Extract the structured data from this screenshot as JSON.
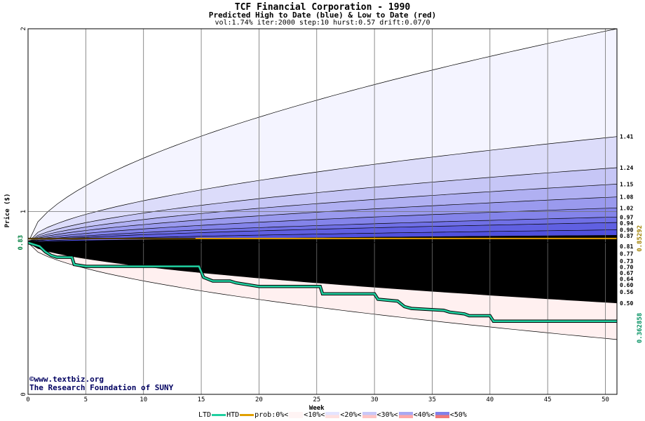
{
  "chart_data": {
    "type": "area",
    "title": "TCF Financial Corporation - 1990",
    "subtitle": "Predicted High to Date (blue) &  Low to Date (red)",
    "params": "vol:1.74% iter:2000 step:10 hurst:0.57 drift:0.07/0",
    "xlabel": "Week",
    "ylabel": "Price ($)",
    "xlim": [
      0,
      51
    ],
    "ylim": [
      0,
      2
    ],
    "x_ticks": [
      0,
      5,
      10,
      15,
      20,
      25,
      30,
      35,
      40,
      45,
      50
    ],
    "y_ticks": [
      0,
      1,
      2
    ],
    "start_price": 0.83,
    "start_price_label": "0.83",
    "high_band_ends": [
      1.41,
      1.24,
      1.15,
      1.08,
      1.02,
      0.97,
      0.94,
      0.9,
      0.87
    ],
    "low_band_ends": [
      0.81,
      0.77,
      0.73,
      0.7,
      0.67,
      0.64,
      0.6,
      0.56,
      0.5
    ],
    "band_end_labels": [
      "1.41",
      "1.24",
      "1.15",
      "1.08",
      "1.02",
      "0.97",
      "0.94",
      "0.90",
      "0.87",
      "0.81",
      "0.77",
      "0.73",
      "0.70",
      "0.67",
      "0.64",
      "0.60",
      "0.56",
      "0.50"
    ],
    "htd_value": 0.85292,
    "htd_value_label": "0.85292",
    "ltd_value": 0.362858,
    "ltd_value_label": "0.362858",
    "htd_series": {
      "name": "HTD",
      "x": [
        0,
        14.5
      ],
      "y": [
        0.85,
        0.85
      ]
    },
    "ltd_series": {
      "name": "LTD",
      "x": [
        0,
        1,
        1.5,
        2,
        2.5,
        3.8,
        4,
        5,
        14.8,
        15.2,
        16,
        17.5,
        18,
        20,
        25.3,
        25.5,
        30,
        30.3,
        32,
        32.6,
        33.2,
        36,
        36.5,
        37.8,
        38.2,
        40,
        40.3,
        51
      ],
      "y": [
        0.83,
        0.81,
        0.78,
        0.76,
        0.75,
        0.75,
        0.71,
        0.7,
        0.7,
        0.64,
        0.62,
        0.62,
        0.61,
        0.59,
        0.59,
        0.55,
        0.55,
        0.52,
        0.51,
        0.48,
        0.47,
        0.46,
        0.45,
        0.44,
        0.43,
        0.43,
        0.4,
        0.4
      ]
    },
    "outer_bounds": {
      "upper_end": 2.0,
      "lower_end": 0.3
    },
    "grid": true,
    "colors": {
      "htd": "#e0a000",
      "ltd": "#20d0a0",
      "high_label": "#a08000",
      "low_label": "#009060",
      "blue_bands": [
        "#f4f4ff",
        "#dcdcfa",
        "#c6c6f6",
        "#b0b0f2",
        "#9a9aee",
        "#8484ea",
        "#7070e6",
        "#6060e2",
        "#5050de"
      ],
      "red_bands": [
        "#fff0f0",
        "#ffd8d8",
        "#ffc4c4",
        "#ffb0b0",
        "#ff9c9c",
        "#f88888",
        "#f07878",
        "#e86868",
        "#e05858"
      ]
    },
    "legend": {
      "items": [
        "LTD",
        "HTD",
        "prob:0%<",
        "<10%<",
        "<20%<",
        "<30%<",
        "<40%<",
        "<50%"
      ],
      "placement": "bottom"
    }
  },
  "credit": {
    "line1": "©www.textbiz.org",
    "line2": "The Research Foundation of SUNY"
  }
}
